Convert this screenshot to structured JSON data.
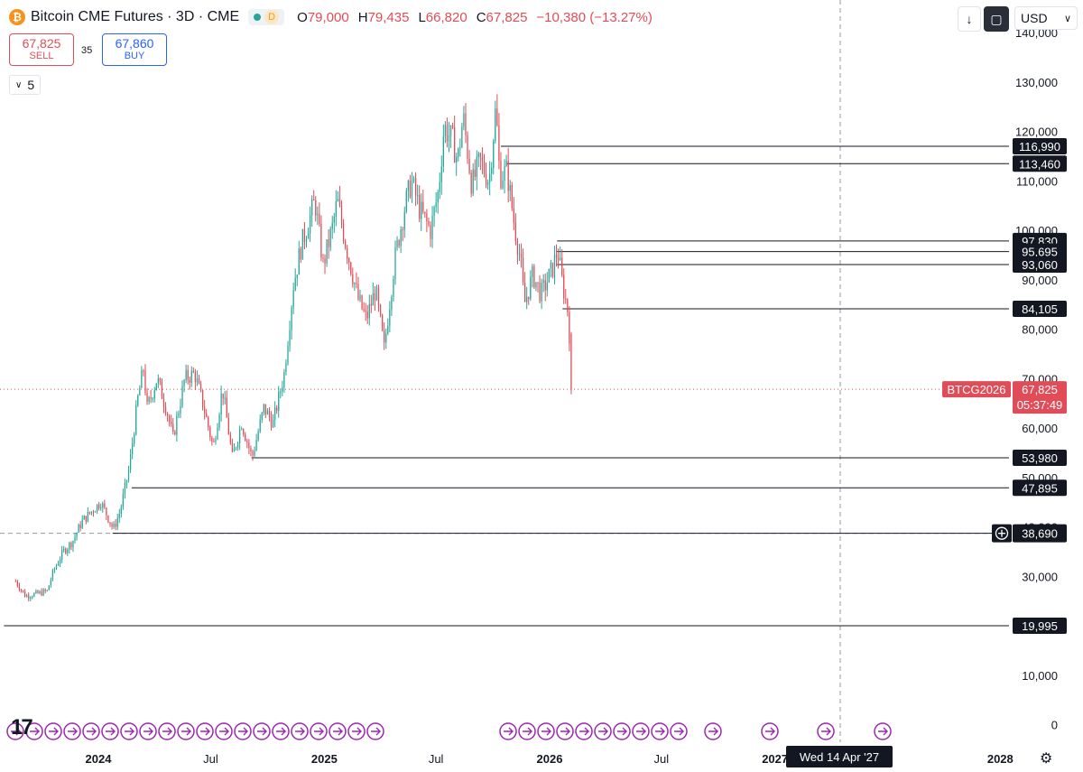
{
  "header": {
    "title": "Bitcoin CME Futures · 3D · CME",
    "logo_letter": "₿",
    "delay_letter": "D",
    "ohlc": [
      {
        "k": "O",
        "v": "79,000"
      },
      {
        "k": "H",
        "v": "79,435"
      },
      {
        "k": "L",
        "v": "66,820"
      },
      {
        "k": "C",
        "v": "67,825"
      }
    ],
    "change": "−10,380 (−13.27%)"
  },
  "trade": {
    "sell_price": "67,825",
    "sell_label": "SELL",
    "spread": "35",
    "buy_price": "67,860",
    "buy_label": "BUY"
  },
  "layers_count": "5",
  "toolbar": {
    "currency": "USD",
    "currency_icon": "chevron-down-icon",
    "down_icon": "arrow-down-icon",
    "fit_icon": "fit-screen-icon"
  },
  "colors": {
    "up": "#26a69a",
    "down": "#e04d58",
    "accent": "#2962ff",
    "event": "#9c27b0"
  },
  "crosshair": {
    "date_label": "Wed 14 Apr '27",
    "price_label": "38,690"
  },
  "chart_data": {
    "type": "candlestick",
    "symbol": "BTCG2026",
    "ylim": [
      0,
      145000
    ],
    "y_ticks": [
      {
        "v": 0,
        "label": "0"
      },
      {
        "v": 10000,
        "label": "10,000"
      },
      {
        "v": 20000,
        "label": "20,000"
      },
      {
        "v": 30000,
        "label": "30,000"
      },
      {
        "v": 40000,
        "label": "40,000"
      },
      {
        "v": 50000,
        "label": "50,000"
      },
      {
        "v": 60000,
        "label": "60,000"
      },
      {
        "v": 70000,
        "label": "70,000"
      },
      {
        "v": 80000,
        "label": "80,000"
      },
      {
        "v": 90000,
        "label": "90,000"
      },
      {
        "v": 100000,
        "label": "100,000"
      },
      {
        "v": 110000,
        "label": "110,000"
      },
      {
        "v": 120000,
        "label": "120,000"
      },
      {
        "v": 130000,
        "label": "130,000"
      },
      {
        "v": 140000,
        "label": "140,000"
      }
    ],
    "x_ticks": [
      {
        "date": "2024-01-01",
        "label": "2024",
        "bold": true
      },
      {
        "date": "2024-07-01",
        "label": "Jul",
        "bold": false
      },
      {
        "date": "2025-01-01",
        "label": "2025",
        "bold": true
      },
      {
        "date": "2025-07-01",
        "label": "Jul",
        "bold": false
      },
      {
        "date": "2026-01-01",
        "label": "2026",
        "bold": true
      },
      {
        "date": "2026-07-01",
        "label": "Jul",
        "bold": false
      },
      {
        "date": "2027-01-01",
        "label": "2027",
        "bold": true
      },
      {
        "date": "2028-01-01",
        "label": "2028",
        "bold": true
      }
    ],
    "last_price": {
      "value": 67825,
      "label": "67,825",
      "countdown": "05:37:49"
    },
    "horizontal_levels": [
      {
        "value": 116990,
        "label": "116,990",
        "from": "2025-10-14"
      },
      {
        "value": 113460,
        "label": "113,460",
        "from": "2025-10-24"
      },
      {
        "value": 97830,
        "label": "97,830",
        "from": "2026-01-13"
      },
      {
        "value": 95695,
        "label": "95,695",
        "from": "2026-01-13"
      },
      {
        "value": 93060,
        "label": "93,060",
        "from": "2026-01-13"
      },
      {
        "value": 84105,
        "label": "84,105",
        "from": "2026-01-22"
      },
      {
        "value": 53980,
        "label": "53,980",
        "from": "2024-09-05"
      },
      {
        "value": 47895,
        "label": "47,895",
        "from": "2024-02-24"
      },
      {
        "value": 38690,
        "label": "38,690",
        "from": "2024-01-24"
      },
      {
        "value": 19995,
        "label": "19,995",
        "from": "2023-08-01"
      }
    ],
    "price_path": [
      [
        "2023-08-20",
        29000
      ],
      [
        "2023-09-05",
        26000
      ],
      [
        "2023-09-25",
        26500
      ],
      [
        "2023-10-10",
        27000
      ],
      [
        "2023-10-20",
        31000
      ],
      [
        "2023-11-05",
        35000
      ],
      [
        "2023-11-20",
        37000
      ],
      [
        "2023-12-05",
        41000
      ],
      [
        "2023-12-20",
        43000
      ],
      [
        "2024-01-05",
        45000
      ],
      [
        "2024-01-20",
        41000
      ],
      [
        "2024-01-25",
        39500
      ],
      [
        "2024-02-05",
        43000
      ],
      [
        "2024-02-20",
        52000
      ],
      [
        "2024-03-05",
        66000
      ],
      [
        "2024-03-14",
        72000
      ],
      [
        "2024-03-20",
        64000
      ],
      [
        "2024-04-05",
        70000
      ],
      [
        "2024-04-20",
        64000
      ],
      [
        "2024-05-01",
        58000
      ],
      [
        "2024-05-20",
        70000
      ],
      [
        "2024-06-05",
        71000
      ],
      [
        "2024-06-20",
        64000
      ],
      [
        "2024-07-05",
        56000
      ],
      [
        "2024-07-20",
        68000
      ],
      [
        "2024-08-05",
        54000
      ],
      [
        "2024-08-20",
        61000
      ],
      [
        "2024-09-06",
        54000
      ],
      [
        "2024-09-25",
        64000
      ],
      [
        "2024-10-10",
        61000
      ],
      [
        "2024-10-28",
        71000
      ],
      [
        "2024-11-12",
        89000
      ],
      [
        "2024-11-25",
        97000
      ],
      [
        "2024-12-05",
        101000
      ],
      [
        "2024-12-17",
        106000
      ],
      [
        "2024-12-30",
        93000
      ],
      [
        "2025-01-15",
        101000
      ],
      [
        "2025-01-22",
        106000
      ],
      [
        "2025-02-05",
        97000
      ],
      [
        "2025-02-25",
        86000
      ],
      [
        "2025-03-10",
        82000
      ],
      [
        "2025-03-25",
        88000
      ],
      [
        "2025-04-08",
        76000
      ],
      [
        "2025-04-25",
        94000
      ],
      [
        "2025-05-10",
        104000
      ],
      [
        "2025-05-22",
        110000
      ],
      [
        "2025-06-05",
        104000
      ],
      [
        "2025-06-22",
        100000
      ],
      [
        "2025-07-05",
        108000
      ],
      [
        "2025-07-14",
        121000
      ],
      [
        "2025-07-28",
        118000
      ],
      [
        "2025-08-05",
        114000
      ],
      [
        "2025-08-14",
        123000
      ],
      [
        "2025-08-28",
        109000
      ],
      [
        "2025-09-10",
        114000
      ],
      [
        "2025-09-25",
        110000
      ],
      [
        "2025-10-06",
        125000
      ],
      [
        "2025-10-12",
        111000
      ],
      [
        "2025-10-24",
        112000
      ],
      [
        "2025-11-05",
        101000
      ],
      [
        "2025-11-15",
        94000
      ],
      [
        "2025-11-21",
        85000
      ],
      [
        "2025-12-05",
        91000
      ],
      [
        "2025-12-18",
        87000
      ],
      [
        "2026-01-05",
        92000
      ],
      [
        "2026-01-14",
        96000
      ],
      [
        "2026-01-22",
        89000
      ],
      [
        "2026-01-30",
        84000
      ],
      [
        "2026-02-02",
        79000
      ],
      [
        "2026-02-05",
        67825
      ]
    ]
  }
}
